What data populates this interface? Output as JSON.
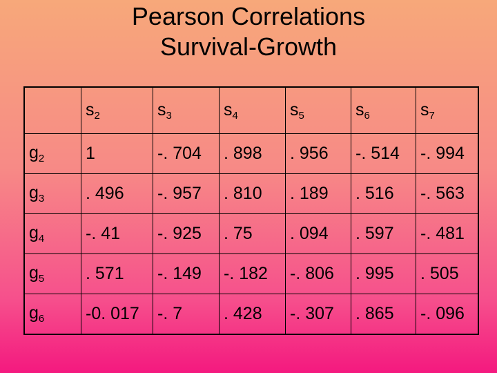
{
  "title": {
    "line1": "Pearson Correlations",
    "line2": "Survival-Growth"
  },
  "table": {
    "columns": [
      {
        "base": "s",
        "sub": "2"
      },
      {
        "base": "s",
        "sub": "3"
      },
      {
        "base": "s",
        "sub": "4"
      },
      {
        "base": "s",
        "sub": "5"
      },
      {
        "base": "s",
        "sub": "6"
      },
      {
        "base": "s",
        "sub": "7"
      }
    ],
    "rows": [
      {
        "base": "g",
        "sub": "2",
        "cells": [
          "1",
          "-. 704",
          ". 898",
          ". 956",
          "-. 514",
          "-. 994"
        ]
      },
      {
        "base": "g",
        "sub": "3",
        "cells": [
          ". 496",
          "-. 957",
          ". 810",
          ". 189",
          ". 516",
          "-. 563"
        ]
      },
      {
        "base": "g",
        "sub": "4",
        "cells": [
          "-. 41",
          "-. 925",
          ". 75",
          ". 094",
          ". 597",
          "-. 481"
        ]
      },
      {
        "base": "g",
        "sub": "5",
        "cells": [
          ". 571",
          "-. 149",
          "-. 182",
          "-. 806",
          ". 995",
          ". 505"
        ]
      },
      {
        "base": "g",
        "sub": "6",
        "cells": [
          "-0. 017",
          "-. 7",
          ". 428",
          "-. 307",
          ". 865",
          "-. 096"
        ]
      }
    ]
  }
}
